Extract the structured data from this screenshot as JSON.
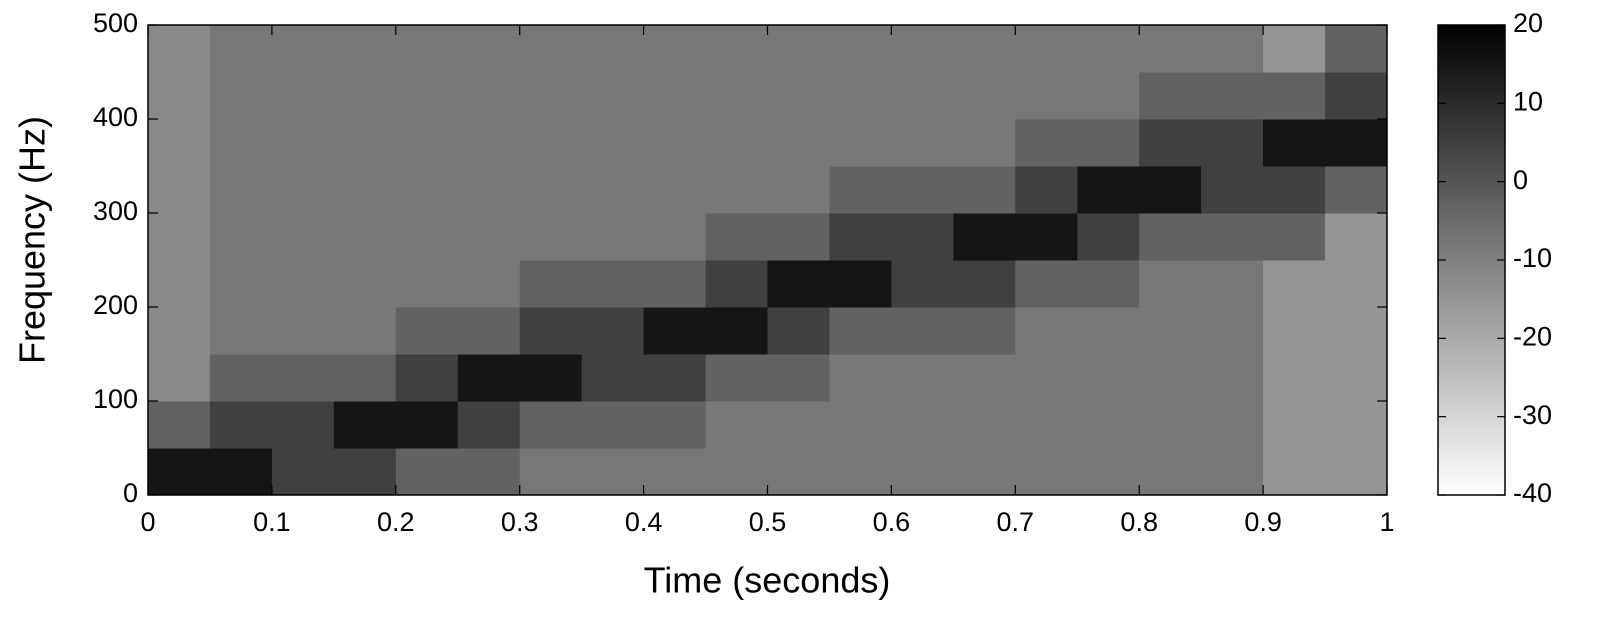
{
  "chart_data": {
    "type": "heatmap",
    "xlabel": "Time (seconds)",
    "ylabel": "Frequency (Hz)",
    "x": [
      0.025,
      0.075,
      0.125,
      0.175,
      0.225,
      0.275,
      0.325,
      0.375,
      0.425,
      0.475,
      0.525,
      0.575,
      0.625,
      0.675,
      0.725,
      0.775,
      0.825,
      0.875,
      0.925,
      0.975
    ],
    "y": [
      25,
      75,
      125,
      175,
      225,
      275,
      325,
      375,
      425,
      475
    ],
    "z": [
      [
        15,
        15,
        5,
        5,
        -3,
        -3,
        -8,
        -8,
        -8,
        -8,
        -8,
        -8,
        -8,
        -8,
        -8,
        -8,
        -8,
        -8,
        -15,
        -15
      ],
      [
        -3,
        5,
        5,
        15,
        15,
        5,
        -3,
        -3,
        -3,
        -8,
        -8,
        -8,
        -8,
        -8,
        -8,
        -8,
        -8,
        -8,
        -15,
        -15
      ],
      [
        -12,
        -3,
        -3,
        -3,
        5,
        15,
        15,
        5,
        5,
        -3,
        -3,
        -8,
        -8,
        -8,
        -8,
        -8,
        -8,
        -8,
        -15,
        -15
      ],
      [
        -12,
        -8,
        -8,
        -8,
        -3,
        -3,
        5,
        5,
        15,
        15,
        5,
        -3,
        -3,
        -3,
        -8,
        -8,
        -8,
        -8,
        -15,
        -15
      ],
      [
        -12,
        -8,
        -8,
        -8,
        -8,
        -8,
        -3,
        -3,
        -3,
        5,
        15,
        15,
        5,
        5,
        -3,
        -3,
        -8,
        -8,
        -15,
        -15
      ],
      [
        -12,
        -8,
        -8,
        -8,
        -8,
        -8,
        -8,
        -8,
        -8,
        -3,
        -3,
        5,
        5,
        15,
        15,
        5,
        -3,
        -3,
        -3,
        -15
      ],
      [
        -12,
        -8,
        -8,
        -8,
        -8,
        -8,
        -8,
        -8,
        -8,
        -8,
        -8,
        -3,
        -3,
        -3,
        5,
        15,
        15,
        5,
        5,
        -3
      ],
      [
        -12,
        -8,
        -8,
        -8,
        -8,
        -8,
        -8,
        -8,
        -8,
        -8,
        -8,
        -8,
        -8,
        -8,
        -3,
        -3,
        5,
        5,
        15,
        15
      ],
      [
        -12,
        -8,
        -8,
        -8,
        -8,
        -8,
        -8,
        -8,
        -8,
        -8,
        -8,
        -8,
        -8,
        -8,
        -8,
        -8,
        -3,
        -3,
        -3,
        5
      ],
      [
        -12,
        -8,
        -8,
        -8,
        -8,
        -8,
        -8,
        -8,
        -8,
        -8,
        -8,
        -8,
        -8,
        -8,
        -8,
        -8,
        -8,
        -8,
        -15,
        -3
      ]
    ],
    "xlim": [
      0,
      1
    ],
    "xticks": [
      0,
      0.1,
      0.2,
      0.3,
      0.4,
      0.5,
      0.6,
      0.7,
      0.8,
      0.9,
      1
    ],
    "ylim": [
      0,
      500
    ],
    "yticks": [
      0,
      100,
      200,
      300,
      400,
      500
    ],
    "clim": [
      -40,
      20
    ],
    "cticks": [
      20,
      10,
      0,
      -10,
      -20,
      -30,
      -40
    ],
    "colormap": [
      "#ffffff",
      "#000000"
    ],
    "grid": false
  }
}
